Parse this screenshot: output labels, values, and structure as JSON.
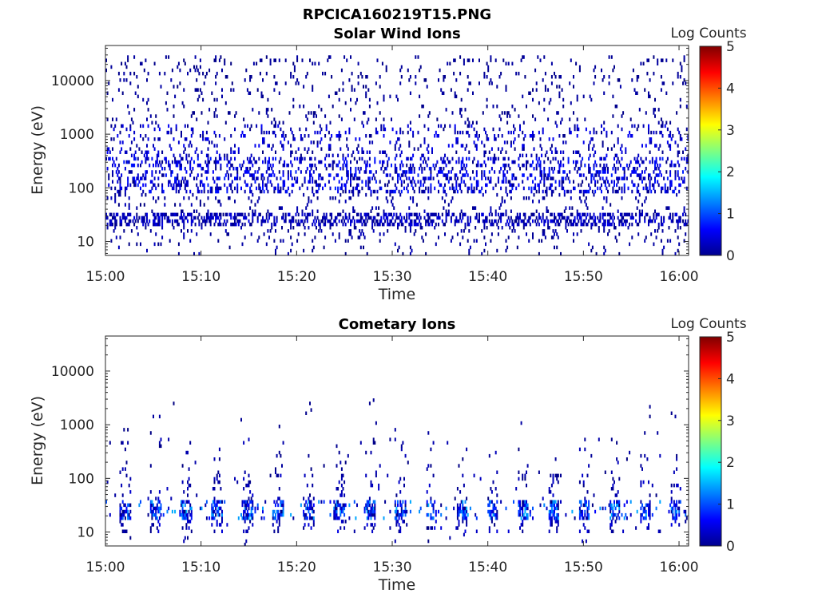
{
  "figure": {
    "title": "RPCICA160219T15.PNG"
  },
  "chart_data": [
    {
      "type": "heatmap",
      "title": "Solar Wind Ions",
      "xlabel": "Time",
      "ylabel": "Energy (eV)",
      "x_ticks": [
        "15:00",
        "15:10",
        "15:20",
        "15:30",
        "15:40",
        "15:50",
        "16:00"
      ],
      "y_ticks": [
        "10",
        "100",
        "1000",
        "10000"
      ],
      "y_scale": "log",
      "xlim": [
        "15:00",
        "16:01"
      ],
      "ylim": [
        5.5,
        45000
      ],
      "colorbar": {
        "label": "Log Counts",
        "ticks": [
          "0",
          "1",
          "2",
          "3",
          "4",
          "5"
        ],
        "range": [
          0,
          5
        ],
        "colormap": "jet"
      },
      "bands": [
        {
          "energy_range": [
            5.5,
            10
          ],
          "log_counts_range": [
            0,
            0.3
          ],
          "occupancy": 0.03
        },
        {
          "energy_range": [
            10,
            20
          ],
          "log_counts_range": [
            0,
            0.3
          ],
          "occupancy": 0.08
        },
        {
          "energy_range": [
            20,
            32
          ],
          "log_counts_range": [
            0,
            0.5
          ],
          "occupancy": 0.45
        },
        {
          "energy_range": [
            32,
            80
          ],
          "log_counts_range": [
            0,
            0.3
          ],
          "occupancy": 0.06
        },
        {
          "energy_range": [
            80,
            400
          ],
          "log_counts_range": [
            0,
            0.8
          ],
          "occupancy": 0.25
        },
        {
          "energy_range": [
            400,
            1600
          ],
          "log_counts_range": [
            0,
            0.6
          ],
          "occupancy": 0.12
        },
        {
          "energy_range": [
            1600,
            30000
          ],
          "log_counts_range": [
            0,
            0.2
          ],
          "occupancy": 0.05
        }
      ]
    },
    {
      "type": "heatmap",
      "title": "Cometary Ions",
      "xlabel": "Time",
      "ylabel": "Energy (eV)",
      "x_ticks": [
        "15:00",
        "15:10",
        "15:20",
        "15:30",
        "15:40",
        "15:50",
        "16:00"
      ],
      "y_ticks": [
        "10",
        "100",
        "1000",
        "10000"
      ],
      "y_scale": "log",
      "xlim": [
        "15:00",
        "16:01"
      ],
      "ylim": [
        5.5,
        45000
      ],
      "colorbar": {
        "label": "Log Counts",
        "ticks": [
          "0",
          "1",
          "2",
          "3",
          "4",
          "5"
        ],
        "range": [
          0,
          5
        ],
        "colormap": "jet"
      },
      "sweep_period_min": 3.2,
      "bands": [
        {
          "energy_range": [
            5.5,
            10
          ],
          "log_counts_range": [
            0,
            0.3
          ],
          "occupancy": 0.02
        },
        {
          "energy_range": [
            10,
            17
          ],
          "log_counts_range": [
            0,
            0.5
          ],
          "occupancy": 0.18
        },
        {
          "energy_range": [
            17,
            42
          ],
          "log_counts_range": [
            0,
            1.5
          ],
          "occupancy": 0.6
        },
        {
          "energy_range": [
            42,
            120
          ],
          "log_counts_range": [
            0,
            0.4
          ],
          "occupancy": 0.12
        },
        {
          "energy_range": [
            120,
            600
          ],
          "log_counts_range": [
            0,
            0.3
          ],
          "occupancy": 0.05
        },
        {
          "energy_range": [
            600,
            3000
          ],
          "log_counts_range": [
            0,
            0.2
          ],
          "occupancy": 0.01
        }
      ]
    }
  ]
}
